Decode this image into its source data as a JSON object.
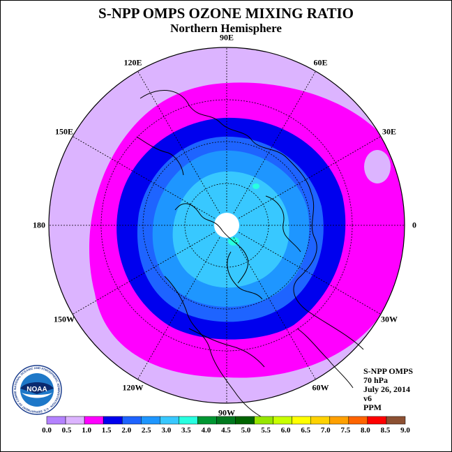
{
  "header": {
    "title": "S-NPP OMPS OZONE MIXING RATIO",
    "subtitle": "Northern Hemisphere"
  },
  "map": {
    "projection": "north-polar-stereographic",
    "longitude_labels": [
      "0",
      "30E",
      "60E",
      "90E",
      "120E",
      "150E",
      "180",
      "150W",
      "120W",
      "90W",
      "60W",
      "30W"
    ],
    "level_colors": {
      "outer_0.5_1.0": "#dcb4ff",
      "1.0_1.5": "#ff00ff",
      "1.5_2.0": "#0000ee",
      "2.0_2.5": "#1e64ff",
      "2.5_3.0": "#1e96ff",
      "3.0_3.5": "#38c8ff",
      "3.5_4.0": "#28ffe0",
      "no_data": "#ffffff"
    }
  },
  "info": {
    "instrument": "S-NPP OMPS",
    "pressure": "70 hPa",
    "date": "July 26, 2014",
    "version": "v6",
    "units": "PPM"
  },
  "colorbar": {
    "ticks": [
      "0.0",
      "0.5",
      "1.0",
      "1.5",
      "2.0",
      "2.5",
      "3.0",
      "3.5",
      "4.0",
      "4.5",
      "5.0",
      "5.5",
      "6.0",
      "6.5",
      "7.0",
      "7.5",
      "8.0",
      "8.5",
      "9.0"
    ],
    "colors": [
      "#b482ff",
      "#dcb4ff",
      "#ff00ff",
      "#0000ee",
      "#1e64ff",
      "#1e96ff",
      "#38c8ff",
      "#28ffe0",
      "#009632",
      "#00781e",
      "#006400",
      "#96e600",
      "#c8ff00",
      "#ffff00",
      "#ffd200",
      "#ffa000",
      "#ff6400",
      "#ff0000",
      "#8c5032"
    ]
  },
  "logo": {
    "text": "NOAA",
    "ring_text": "NATIONAL OCEANIC AND ATMOSPHERIC ADMINISTRATION · U.S. DEPARTMENT OF COMMERCE"
  }
}
